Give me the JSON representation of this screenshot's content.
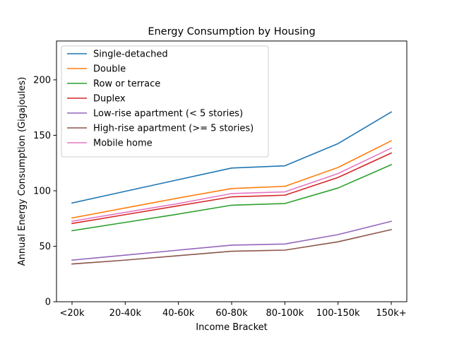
{
  "chart_data": {
    "type": "line",
    "title": "Energy Consumption by Housing",
    "xlabel": "Income Bracket",
    "ylabel": "Annual Energy Consumption (Gigajoules)",
    "categories": [
      "<20k",
      "20-40k",
      "40-60k",
      "60-80k",
      "80-100k",
      "100-150k",
      "150k+"
    ],
    "ylim": [
      0,
      235
    ],
    "yticks": [
      0,
      50,
      100,
      150,
      200
    ],
    "grid": false,
    "legend_position": "upper-left",
    "series": [
      {
        "name": "Single-detached",
        "color": "#1f77b4",
        "values": [
          89,
          99.5,
          110,
          120.5,
          122.5,
          142.5,
          171
        ]
      },
      {
        "name": "Double",
        "color": "#ff7f0e",
        "values": [
          75.5,
          84.5,
          93.5,
          102,
          104,
          121,
          145
        ]
      },
      {
        "name": "Row or terrace",
        "color": "#2ca02c",
        "values": [
          64,
          71.5,
          79,
          87,
          88.5,
          102.5,
          123.5
        ]
      },
      {
        "name": "Duplex",
        "color": "#d62728",
        "values": [
          70.5,
          78.5,
          86.5,
          94.5,
          96,
          112,
          134
        ]
      },
      {
        "name": "Low-rise apartment (< 5 stories)",
        "color": "#9467bd",
        "values": [
          37.5,
          42,
          46.5,
          51,
          52,
          60.5,
          72.5
        ]
      },
      {
        "name": "High-rise apartment (>= 5 stories)",
        "color": "#8c564b",
        "values": [
          34,
          37.5,
          41.5,
          45.5,
          46.5,
          54,
          65
        ]
      },
      {
        "name": "Mobile home",
        "color": "#e377c2",
        "values": [
          72.5,
          80.5,
          88.5,
          97.5,
          99,
          115.5,
          138.5
        ]
      }
    ]
  }
}
